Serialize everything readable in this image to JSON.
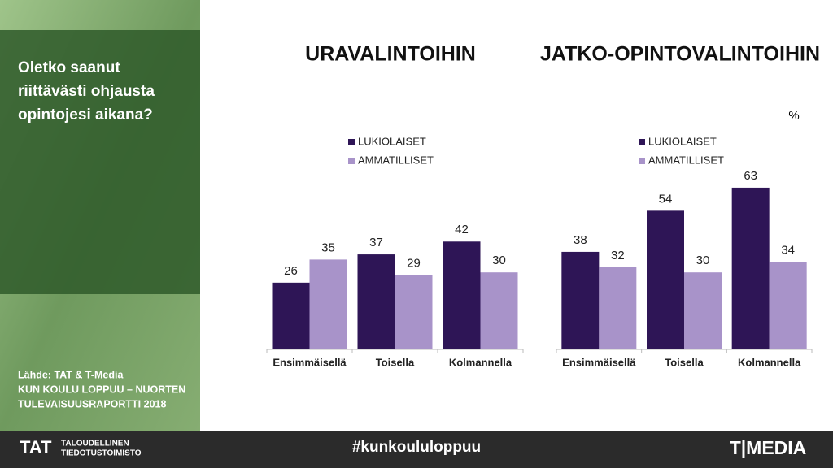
{
  "slide": {
    "question": [
      "Oletko saanut",
      "riittävästi ohjausta",
      "opintojesi aikana?"
    ],
    "source": [
      "Lähde: TAT & T-Media",
      "KUN KOULU LOPPUU – NUORTEN",
      "TULEVAISUUSRAPORTTI 2018"
    ],
    "unit": "%"
  },
  "footer": {
    "tat_logo": "TAT",
    "tat_name": [
      "TALOUDELLINEN",
      "TIEDOTUSTOIMISTO"
    ],
    "hashtag": "#kunkoululoppuu",
    "tmedia_logo": "T|MEDIA"
  },
  "chart_data": [
    {
      "type": "bar",
      "title": "URAVALINTOIHIN",
      "categories": [
        "Ensimmäisellä",
        "Toisella",
        "Kolmannella"
      ],
      "series": [
        {
          "name": "LUKIOLAISET",
          "color": "#2e1556",
          "values": [
            26,
            37,
            42
          ]
        },
        {
          "name": "AMMATILLISET",
          "color": "#a893c9",
          "values": [
            35,
            29,
            30
          ]
        }
      ]
    },
    {
      "type": "bar",
      "title": "JATKO-OPINTOVALINTOIHIN",
      "categories": [
        "Ensimmäisellä",
        "Toisella",
        "Kolmannella"
      ],
      "series": [
        {
          "name": "LUKIOLAISET",
          "color": "#2e1556",
          "values": [
            38,
            54,
            63
          ]
        },
        {
          "name": "AMMATILLISET",
          "color": "#a893c9",
          "values": [
            32,
            30,
            34
          ]
        }
      ]
    }
  ]
}
